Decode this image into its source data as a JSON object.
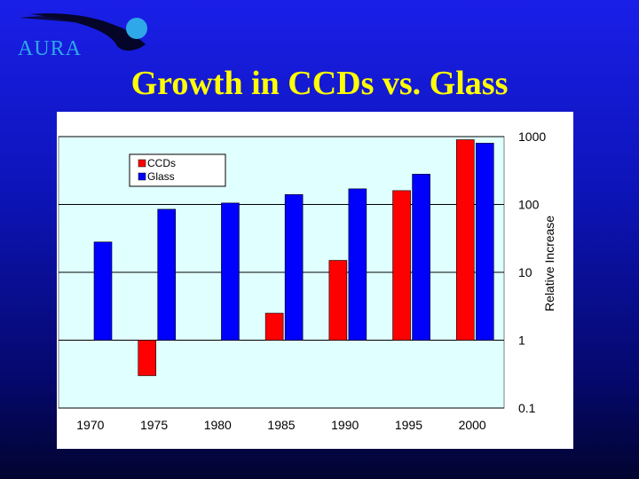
{
  "logo": {
    "text": "AURA",
    "icon": "aura-globe-icon"
  },
  "slide": {
    "title": "Growth in CCDs vs. Glass"
  },
  "chart_data": {
    "type": "bar",
    "title": "",
    "xlabel": "",
    "ylabel": "Relative Increase",
    "y_scale": "log",
    "ylim": [
      0.1,
      1000
    ],
    "y_ticks": [
      "0.1",
      "1",
      "10",
      "100",
      "1000"
    ],
    "y_tick_values": [
      0.1,
      1,
      10,
      100,
      1000
    ],
    "categories": [
      "1970",
      "1975",
      "1980",
      "1985",
      "1990",
      "1995",
      "2000"
    ],
    "grid": true,
    "legend": "top-left",
    "series": [
      {
        "name": "CCDs",
        "color": "#ff0000",
        "values": [
          1,
          0.3,
          null,
          2.5,
          15,
          160,
          900
        ]
      },
      {
        "name": "Glass",
        "color": "#0000ff",
        "values": [
          28,
          85,
          105,
          140,
          170,
          280,
          800
        ]
      }
    ],
    "plot_background": "#e0ffff"
  }
}
